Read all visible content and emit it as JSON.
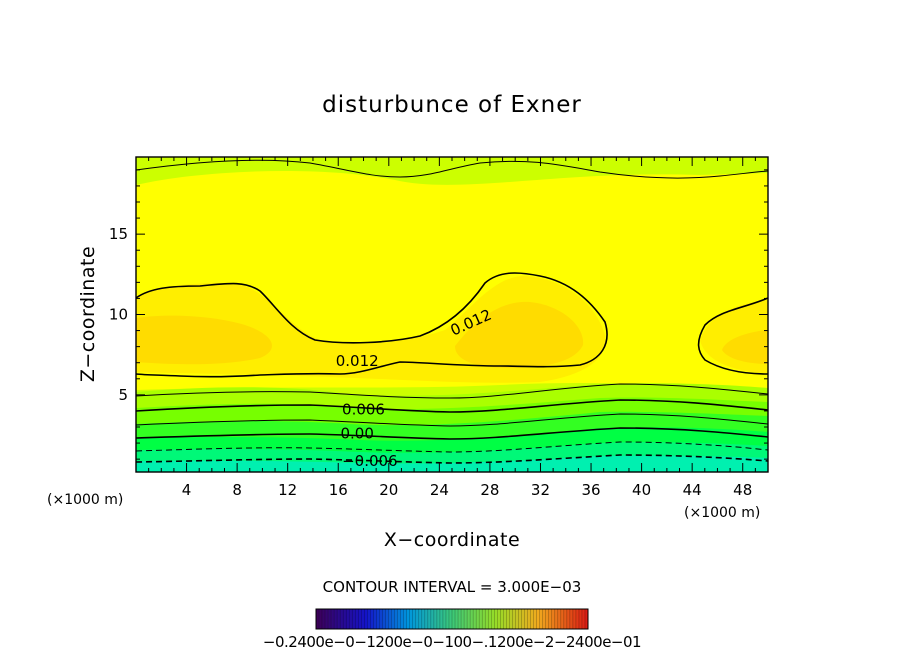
{
  "chart_data": {
    "type": "contour",
    "title": "disturbunce of Exner",
    "xlabel": "X−coordinate",
    "ylabel": "Z−coordinate",
    "x_unit": "(×1000 m)",
    "y_unit": "(×1000 m)",
    "xlim": [
      0,
      50
    ],
    "ylim": [
      0.2,
      19.8
    ],
    "x_ticks": [
      "4",
      "8",
      "12",
      "16",
      "20",
      "24",
      "28",
      "32",
      "36",
      "40",
      "44",
      "48"
    ],
    "y_ticks": [
      "5",
      "10",
      "15"
    ],
    "contour_labels": [
      {
        "text": "0.012",
        "x": 26.5,
        "y": 9.5
      },
      {
        "text": "0.012",
        "x": 17.5,
        "y": 7.1
      },
      {
        "text": "0.006",
        "x": 18.0,
        "y": 4.1
      },
      {
        "text": "0.00",
        "x": 17.5,
        "y": 2.6
      },
      {
        "text": "−0.006",
        "x": 18.5,
        "y": 0.9
      }
    ],
    "contour_interval_text": "CONTOUR INTERVAL = 3.000E−03",
    "colorbar": {
      "range": [
        -0.24,
        0.24
      ],
      "tick_labels_text": "−0.2400e−0−1200e−0−100−.1200e−2−2400e−01",
      "colormap": "rainbow"
    },
    "colors": {
      "background": "#ffffff",
      "frame": "#000000",
      "orange_band": "#ffdc00",
      "yellow_band": "#ffff00",
      "lime_band": "#ccff00",
      "green_band": "#00ff44",
      "cyan_band": "#00f0b0"
    },
    "grid": false,
    "legend": "colorbar-bottom-center"
  }
}
